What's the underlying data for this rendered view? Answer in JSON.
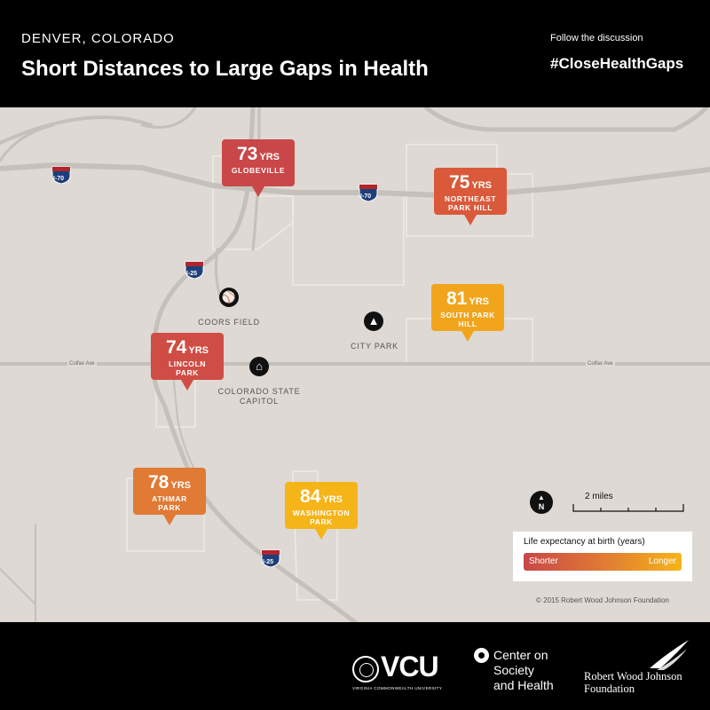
{
  "header": {
    "location": "DENVER, COLORADO",
    "title": "Short Distances to Large Gaps in Health",
    "follow": "Follow the discussion",
    "hashtag": "#CloseHealthGaps"
  },
  "markers": [
    {
      "value": "73",
      "unit": "YRS",
      "name": "GLOBEVILLE",
      "color": "#c94748"
    },
    {
      "value": "75",
      "unit": "YRS",
      "name": "NORTHEAST PARK HILL",
      "color": "#d9593a"
    },
    {
      "value": "74",
      "unit": "YRS",
      "name": "LINCOLN PARK",
      "color": "#cf4d44"
    },
    {
      "value": "81",
      "unit": "YRS",
      "name": "SOUTH PARK HILL",
      "color": "#f0a51d"
    },
    {
      "value": "78",
      "unit": "YRS",
      "name": "ATHMAR PARK",
      "color": "#e07a35"
    },
    {
      "value": "84",
      "unit": "YRS",
      "name": "WASHINGTON PARK",
      "color": "#f5b418"
    }
  ],
  "landmarks": {
    "coors_field": "COORS FIELD",
    "city_park": "CITY PARK",
    "capitol_line1": "COLORADO STATE",
    "capitol_line2": "CAPITOL"
  },
  "streets": {
    "colfax": "Colfax Ave"
  },
  "highways": {
    "i70": "I-70",
    "i25": "I-25"
  },
  "scale": {
    "label": "2 miles",
    "north": "N"
  },
  "legend": {
    "title": "Life expectancy at birth (years)",
    "shorter": "Shorter",
    "longer": "Longer"
  },
  "copyright": "© 2015 Robert Wood Johnson Foundation",
  "footer": {
    "vcu": "VCU",
    "vcu_sub": "VIRGINIA COMMONWEALTH UNIVERSITY",
    "center_line1": "Center on",
    "center_line2": "Society",
    "center_line3": "and Health",
    "rwjf_line1": "Robert Wood Johnson",
    "rwjf_line2": "Foundation"
  }
}
